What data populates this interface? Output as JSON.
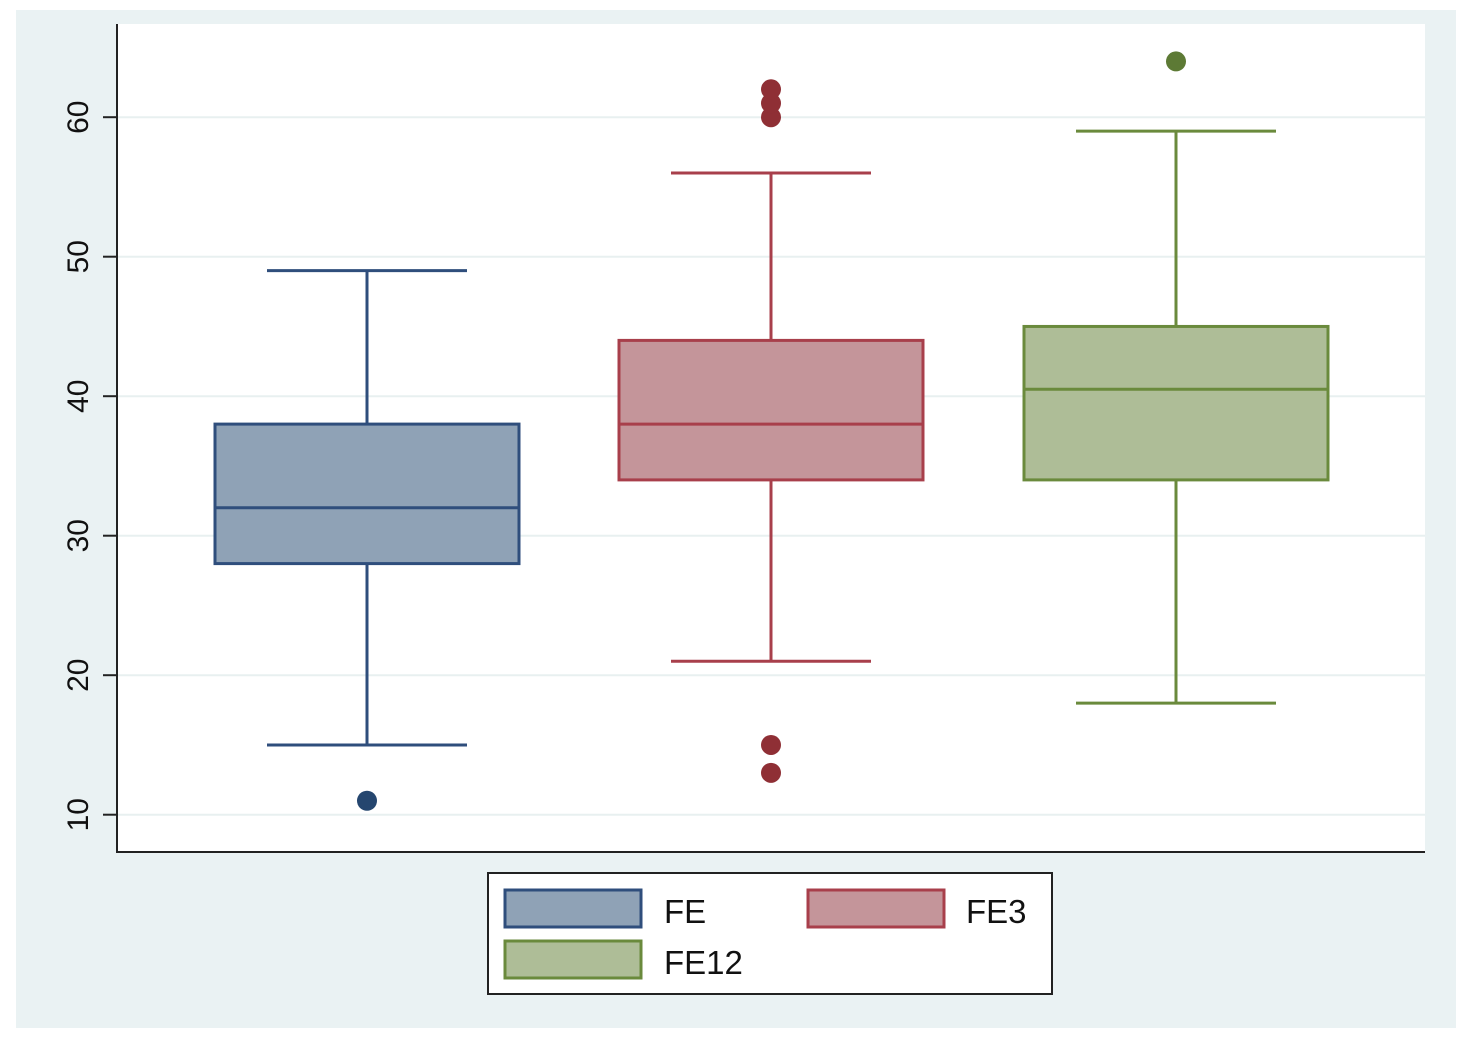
{
  "chart_data": {
    "type": "box",
    "title": "",
    "xlabel": "",
    "ylabel": "",
    "ylim": [
      7.5,
      67
    ],
    "yticks": [
      10,
      20,
      30,
      40,
      50,
      60
    ],
    "grid": true,
    "legend_position": "bottom-center",
    "series": [
      {
        "name": "FE",
        "color": "#8fa2b6",
        "edge": "#2f4e7c",
        "whisker_low": 15,
        "q1": 28,
        "median": 32,
        "q3": 38,
        "whisker_high": 49,
        "outliers": [
          11
        ]
      },
      {
        "name": "FE3",
        "color": "#c4959a",
        "edge": "#a83f4b",
        "whisker_low": 21,
        "q1": 34,
        "median": 38,
        "q3": 44,
        "whisker_high": 56,
        "outliers": [
          13,
          15,
          60,
          61,
          62
        ]
      },
      {
        "name": "FE12",
        "color": "#aebd97",
        "edge": "#6a8a3c",
        "whisker_low": 18,
        "q1": 34,
        "median": 40.5,
        "q3": 45,
        "whisker_high": 59,
        "outliers": [
          64
        ]
      }
    ],
    "outlier_colors": [
      "#25466f",
      "#8f2f35",
      "#5d7a35"
    ]
  }
}
